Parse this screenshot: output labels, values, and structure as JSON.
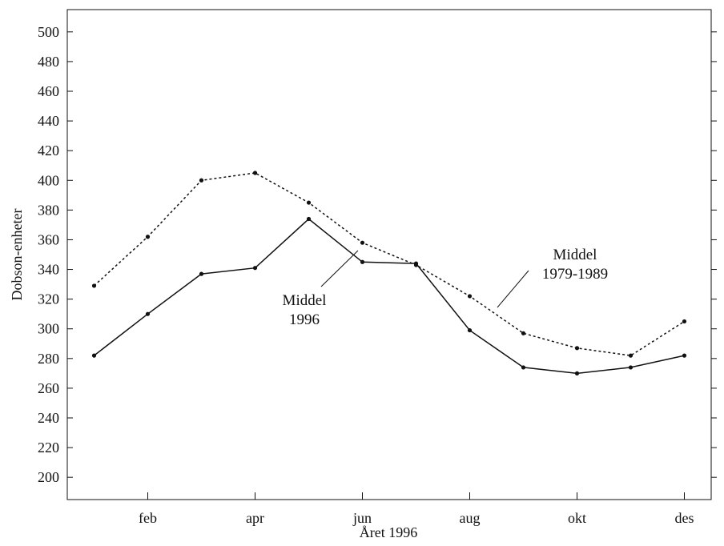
{
  "chart_data": {
    "type": "line",
    "xlabel": "Året 1996",
    "ylabel": "Dobson-enheter",
    "ylim": [
      185,
      515
    ],
    "xlim": [
      0.5,
      12.5
    ],
    "yticks": [
      200,
      220,
      240,
      260,
      280,
      300,
      320,
      340,
      360,
      380,
      400,
      420,
      440,
      460,
      480,
      500
    ],
    "xticks": [
      {
        "x": 2,
        "label": "feb"
      },
      {
        "x": 4,
        "label": "apr"
      },
      {
        "x": 6,
        "label": "jun"
      },
      {
        "x": 8,
        "label": "aug"
      },
      {
        "x": 10,
        "label": "okt"
      },
      {
        "x": 12,
        "label": "des"
      }
    ],
    "x": [
      1,
      2,
      3,
      4,
      5,
      6,
      7,
      8,
      9,
      10,
      11,
      12
    ],
    "series": [
      {
        "key": "mean_1996",
        "style": "solid",
        "values": [
          282,
          310,
          337,
          341,
          374,
          345,
          344,
          299,
          274,
          270,
          274,
          282
        ]
      },
      {
        "key": "mean_1979_1989",
        "style": "dotted",
        "values": [
          329,
          362,
          400,
          405,
          385,
          358,
          343,
          322,
          297,
          287,
          282,
          305
        ]
      }
    ],
    "annotations": [
      {
        "series": "mean_1996",
        "lines": [
          "Middel",
          "1996"
        ]
      },
      {
        "series": "mean_1979_1989",
        "lines": [
          "Middel",
          "1979-1989"
        ]
      }
    ],
    "grid": false,
    "legend": "none"
  }
}
